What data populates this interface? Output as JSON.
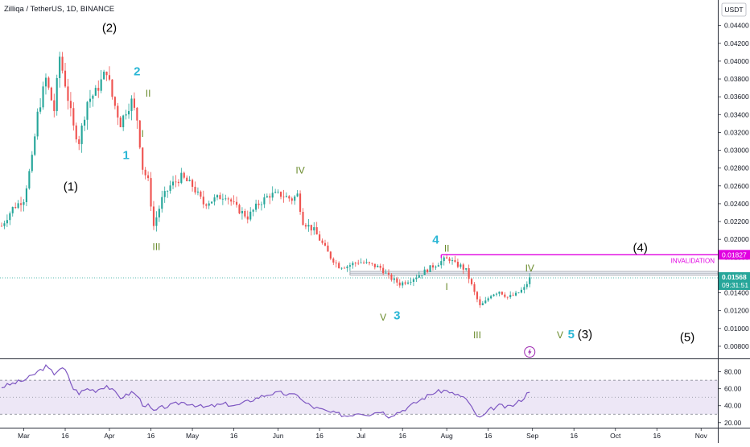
{
  "header": {
    "title": "Zilliqa / TetherUS, 1D, BINANCE",
    "currency": "USDT"
  },
  "colors": {
    "up": "#26a69a",
    "down": "#ef5350",
    "invalidation": "#e100e1",
    "rsi_line": "#7e57c2",
    "rsi_band": "#ede7f6",
    "wave_black": "#000000",
    "wave_cyan": "#29b6d5",
    "wave_green": "#6a8b2c",
    "price_badge": "#26a69a",
    "lightning": "#9c27b0"
  },
  "chart_data": [
    {
      "type": "candlestick",
      "name": "price",
      "ylim": [
        0.007,
        0.0465
      ],
      "y_ticks": [
        "0.04400",
        "0.04200",
        "0.04000",
        "0.03800",
        "0.03600",
        "0.03400",
        "0.03200",
        "0.03000",
        "0.02800",
        "0.02600",
        "0.02400",
        "0.02200",
        "0.02000",
        "0.01800",
        "0.01600",
        "0.01400",
        "0.01200",
        "0.01000",
        "0.00800"
      ],
      "x_ticks": [
        "Mar",
        "16",
        "Apr",
        "16",
        "May",
        "16",
        "Jun",
        "16",
        "Jul",
        "16",
        "Aug",
        "16",
        "Sep",
        "16",
        "Oct",
        "16",
        "Nov"
      ],
      "x_start": "2021-02-21",
      "x_end": "2021-11-05",
      "anchors": [
        [
          "2021-02-21",
          0.0215
        ],
        [
          "2021-02-25",
          0.0235
        ],
        [
          "2021-03-01",
          0.0245
        ],
        [
          "2021-03-04",
          0.029
        ],
        [
          "2021-03-06",
          0.034
        ],
        [
          "2021-03-09",
          0.038
        ],
        [
          "2021-03-12",
          0.0345
        ],
        [
          "2021-03-14",
          0.0405
        ],
        [
          "2021-03-16",
          0.0375
        ],
        [
          "2021-03-19",
          0.0325
        ],
        [
          "2021-03-21",
          0.031
        ],
        [
          "2021-03-24",
          0.0355
        ],
        [
          "2021-03-27",
          0.0365
        ],
        [
          "2021-03-31",
          0.039
        ],
        [
          "2021-04-02",
          0.036
        ],
        [
          "2021-04-05",
          0.033
        ],
        [
          "2021-04-07",
          0.0345
        ],
        [
          "2021-04-09",
          0.0355
        ],
        [
          "2021-04-11",
          0.0335
        ],
        [
          "2021-04-13",
          0.028
        ],
        [
          "2021-04-15",
          0.0265
        ],
        [
          "2021-04-17",
          0.0215
        ],
        [
          "2021-04-20",
          0.0245
        ],
        [
          "2021-04-23",
          0.026
        ],
        [
          "2021-04-27",
          0.027
        ],
        [
          "2021-05-01",
          0.026
        ],
        [
          "2021-05-05",
          0.024
        ],
        [
          "2021-05-09",
          0.0245
        ],
        [
          "2021-05-13",
          0.025
        ],
        [
          "2021-05-17",
          0.0235
        ],
        [
          "2021-05-21",
          0.0225
        ],
        [
          "2021-05-25",
          0.024
        ],
        [
          "2021-05-29",
          0.025
        ],
        [
          "2021-06-02",
          0.025
        ],
        [
          "2021-06-06",
          0.0245
        ],
        [
          "2021-06-08",
          0.025
        ],
        [
          "2021-06-10",
          0.022
        ],
        [
          "2021-06-14",
          0.021
        ],
        [
          "2021-06-17",
          0.0195
        ],
        [
          "2021-06-20",
          0.018
        ],
        [
          "2021-06-23",
          0.017
        ],
        [
          "2021-06-26",
          0.017
        ],
        [
          "2021-06-30",
          0.0175
        ],
        [
          "2021-07-04",
          0.0172
        ],
        [
          "2021-07-08",
          0.0168
        ],
        [
          "2021-07-11",
          0.0158
        ],
        [
          "2021-07-15",
          0.015
        ],
        [
          "2021-07-19",
          0.0155
        ],
        [
          "2021-07-23",
          0.0162
        ],
        [
          "2021-07-27",
          0.017
        ],
        [
          "2021-07-31",
          0.0177
        ],
        [
          "2021-08-02",
          0.0178
        ],
        [
          "2021-08-04",
          0.0172
        ],
        [
          "2021-08-06",
          0.017
        ],
        [
          "2021-08-08",
          0.0165
        ],
        [
          "2021-08-11",
          0.014
        ],
        [
          "2021-08-13",
          0.0125
        ],
        [
          "2021-08-15",
          0.013
        ],
        [
          "2021-08-17",
          0.0138
        ],
        [
          "2021-08-20",
          0.0142
        ],
        [
          "2021-08-23",
          0.0135
        ],
        [
          "2021-08-26",
          0.0138
        ],
        [
          "2021-08-29",
          0.0145
        ],
        [
          "2021-08-31",
          0.0156
        ]
      ]
    },
    {
      "type": "line",
      "name": "RSI",
      "ylim": [
        16,
        92
      ],
      "y_ticks": [
        "80.00",
        "60.00",
        "40.00",
        "20.00"
      ],
      "band": [
        30,
        70
      ],
      "mid": 50,
      "anchors": [
        [
          "2021-02-21",
          62
        ],
        [
          "2021-02-25",
          66
        ],
        [
          "2021-03-01",
          70
        ],
        [
          "2021-03-04",
          75
        ],
        [
          "2021-03-06",
          80
        ],
        [
          "2021-03-09",
          86
        ],
        [
          "2021-03-12",
          78
        ],
        [
          "2021-03-14",
          84
        ],
        [
          "2021-03-16",
          82
        ],
        [
          "2021-03-19",
          60
        ],
        [
          "2021-03-21",
          55
        ],
        [
          "2021-03-24",
          60
        ],
        [
          "2021-03-27",
          58
        ],
        [
          "2021-03-31",
          64
        ],
        [
          "2021-04-02",
          58
        ],
        [
          "2021-04-05",
          50
        ],
        [
          "2021-04-07",
          52
        ],
        [
          "2021-04-09",
          56
        ],
        [
          "2021-04-11",
          52
        ],
        [
          "2021-04-13",
          42
        ],
        [
          "2021-04-15",
          40
        ],
        [
          "2021-04-17",
          33
        ],
        [
          "2021-04-20",
          38
        ],
        [
          "2021-04-23",
          40
        ],
        [
          "2021-04-27",
          44
        ],
        [
          "2021-05-01",
          42
        ],
        [
          "2021-05-05",
          38
        ],
        [
          "2021-05-09",
          40
        ],
        [
          "2021-05-13",
          42
        ],
        [
          "2021-05-17",
          40
        ],
        [
          "2021-05-21",
          45
        ],
        [
          "2021-05-25",
          50
        ],
        [
          "2021-05-29",
          54
        ],
        [
          "2021-06-02",
          55
        ],
        [
          "2021-06-06",
          52
        ],
        [
          "2021-06-08",
          54
        ],
        [
          "2021-06-10",
          45
        ],
        [
          "2021-06-14",
          38
        ],
        [
          "2021-06-17",
          35
        ],
        [
          "2021-06-20",
          32
        ],
        [
          "2021-06-23",
          30
        ],
        [
          "2021-06-26",
          28
        ],
        [
          "2021-06-30",
          32
        ],
        [
          "2021-07-04",
          30
        ],
        [
          "2021-07-08",
          34
        ],
        [
          "2021-07-11",
          28
        ],
        [
          "2021-07-15",
          33
        ],
        [
          "2021-07-19",
          40
        ],
        [
          "2021-07-23",
          48
        ],
        [
          "2021-07-27",
          55
        ],
        [
          "2021-07-31",
          58
        ],
        [
          "2021-08-02",
          57
        ],
        [
          "2021-08-04",
          52
        ],
        [
          "2021-08-06",
          52
        ],
        [
          "2021-08-08",
          48
        ],
        [
          "2021-08-11",
          32
        ],
        [
          "2021-08-13",
          25
        ],
        [
          "2021-08-15",
          30
        ],
        [
          "2021-08-17",
          36
        ],
        [
          "2021-08-20",
          40
        ],
        [
          "2021-08-23",
          38
        ],
        [
          "2021-08-26",
          42
        ],
        [
          "2021-08-29",
          50
        ],
        [
          "2021-08-31",
          58
        ]
      ]
    }
  ],
  "price_tags": {
    "invalidation": {
      "price": 0.01827,
      "label": "0.01827",
      "text": "INVALIDATION",
      "start": "2021-07-30",
      "end": "2021-11-05"
    },
    "current": {
      "price": 0.01568,
      "label": "0.01568",
      "countdown": "09:31:51"
    }
  },
  "support_zone": {
    "top": 0.0164,
    "bottom": 0.016,
    "start": "2021-06-27",
    "end": "2021-11-05"
  },
  "wave_labels": [
    {
      "text": "(1)",
      "date": "2021-03-18",
      "price": 0.0255,
      "color": "wave_black",
      "size": 15
    },
    {
      "text": "(2)",
      "date": "2021-04-01",
      "price": 0.0433,
      "color": "wave_black",
      "size": 15
    },
    {
      "text": "2",
      "date": "2021-04-11",
      "price": 0.0384,
      "color": "wave_cyan",
      "size": 15
    },
    {
      "text": "1",
      "date": "2021-04-07",
      "price": 0.029,
      "color": "wave_cyan",
      "size": 15
    },
    {
      "text": "II",
      "date": "2021-04-15",
      "price": 0.036,
      "color": "wave_green",
      "size": 12
    },
    {
      "text": "I",
      "date": "2021-04-13",
      "price": 0.0315,
      "color": "wave_green",
      "size": 12
    },
    {
      "text": "III",
      "date": "2021-04-18",
      "price": 0.0188,
      "color": "wave_green",
      "size": 12
    },
    {
      "text": "IV",
      "date": "2021-06-09",
      "price": 0.0274,
      "color": "wave_green",
      "size": 12
    },
    {
      "text": "4",
      "date": "2021-07-28",
      "price": 0.0195,
      "color": "wave_cyan",
      "size": 15
    },
    {
      "text": "II",
      "date": "2021-08-01",
      "price": 0.0186,
      "color": "wave_green",
      "size": 12
    },
    {
      "text": "IV",
      "date": "2021-08-31",
      "price": 0.0164,
      "color": "wave_green",
      "size": 12
    },
    {
      "text": "I",
      "date": "2021-08-01",
      "price": 0.0143,
      "color": "wave_green",
      "size": 12
    },
    {
      "text": "V",
      "date": "2021-07-09",
      "price": 0.0109,
      "color": "wave_green",
      "size": 12
    },
    {
      "text": "3",
      "date": "2021-07-14",
      "price": 0.011,
      "color": "wave_cyan",
      "size": 15
    },
    {
      "text": "III",
      "date": "2021-08-12",
      "price": 0.0089,
      "color": "wave_green",
      "size": 12
    },
    {
      "text": "V",
      "date": "2021-09-11",
      "price": 0.0089,
      "color": "wave_green",
      "size": 12
    },
    {
      "text": "5",
      "date": "2021-09-15",
      "price": 0.0089,
      "color": "wave_cyan",
      "size": 15
    },
    {
      "text": "(3)",
      "date": "2021-09-20",
      "price": 0.0089,
      "color": "wave_black",
      "size": 15
    },
    {
      "text": "(4)",
      "date": "2021-10-10",
      "price": 0.0186,
      "color": "wave_black",
      "size": 15
    },
    {
      "text": "(5)",
      "date": "2021-10-27",
      "price": 0.0086,
      "color": "wave_black",
      "size": 15
    }
  ],
  "event_marker": {
    "date": "2021-08-31",
    "icon": "lightning-icon"
  }
}
